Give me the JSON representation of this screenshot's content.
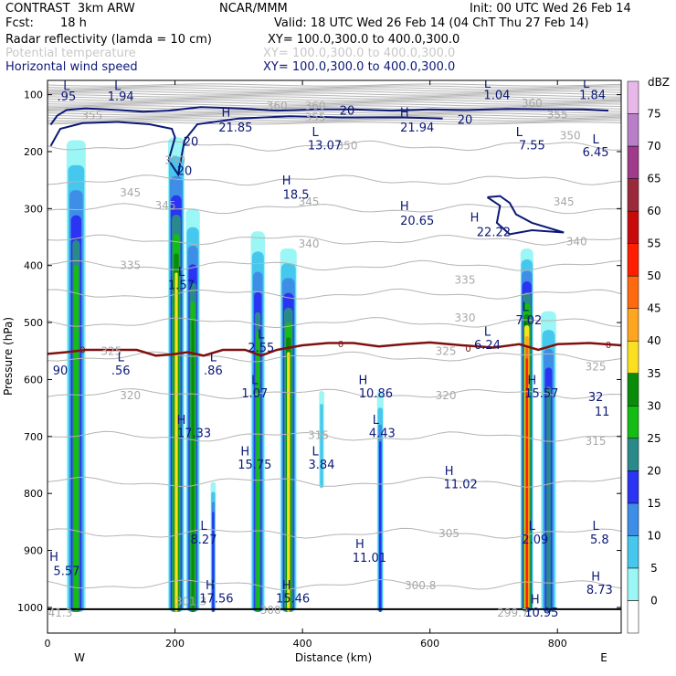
{
  "header": {
    "model": "CONTRAST  3km ARW",
    "producer": "NCAR/MMM",
    "init": "Init: 00 UTC Wed 26 Feb 14",
    "fcst_label": "Fcst:",
    "fcst_value": "18 h",
    "valid": "Valid: 18 UTC Wed 26 Feb 14 (04 ChT Thu 27 Feb 14)",
    "line1_name": "Radar reflectivity (lamda = 10 cm)",
    "line1_xy": "XY= 100.0,300.0 to 400.0,300.0",
    "line2_name": "Potential temperature",
    "line2_xy": "XY= 100.0,300.0 to 400.0,300.0",
    "line3_name": "Horizontal wind speed",
    "line3_xy": "XY= 100.0,300.0 to 400.0,300.0"
  },
  "colors": {
    "reflectivity_scale": [
      "#ffffff",
      "#9bf6f6",
      "#45c7ee",
      "#3e8ee8",
      "#2a34f2",
      "#2a8a8a",
      "#14bc14",
      "#0a8c0a",
      "#fae020",
      "#ffa520",
      "#ff6a10",
      "#ff1e00",
      "#c80a0a",
      "#9a2a3a",
      "#a03a8a",
      "#b87ec8",
      "#e8b8e8"
    ],
    "theta": "#b4b4b4",
    "wind": "#0c1878",
    "freezing": "#801010"
  },
  "chart_data": {
    "type": "cross-section",
    "title": "Radar reflectivity, potential temperature, horizontal wind speed",
    "xlabel": "Distance (km)",
    "ylabel": "Pressure (hPa)",
    "xlim": [
      0,
      900
    ],
    "ylim": [
      1045,
      75
    ],
    "x_ticks": [
      0,
      200,
      400,
      600,
      800
    ],
    "y_ticks": [
      100,
      200,
      300,
      400,
      500,
      600,
      700,
      800,
      900,
      1000
    ],
    "x_end_labels": [
      "W",
      "E"
    ],
    "colorbar": {
      "unit": "dBZ",
      "levels": [
        "0",
        "5",
        "10",
        "15",
        "20",
        "25",
        "30",
        "35",
        "40",
        "45",
        "50",
        "55",
        "60",
        "65",
        "70",
        "75"
      ]
    },
    "theta_labels": [
      {
        "x": 70,
        "p": 137,
        "t": "355"
      },
      {
        "x": 360,
        "p": 120,
        "t": "360"
      },
      {
        "x": 420,
        "p": 120,
        "t": "360"
      },
      {
        "x": 760,
        "p": 115,
        "t": "360"
      },
      {
        "x": 800,
        "p": 135,
        "t": "355"
      },
      {
        "x": 420,
        "p": 140,
        "t": "355"
      },
      {
        "x": 200,
        "p": 215,
        "t": "350"
      },
      {
        "x": 470,
        "p": 190,
        "t": "350"
      },
      {
        "x": 820,
        "p": 172,
        "t": "350"
      },
      {
        "x": 130,
        "p": 272,
        "t": "345"
      },
      {
        "x": 185,
        "p": 295,
        "t": "345"
      },
      {
        "x": 410,
        "p": 288,
        "t": "345"
      },
      {
        "x": 810,
        "p": 288,
        "t": "345"
      },
      {
        "x": 410,
        "p": 362,
        "t": "340"
      },
      {
        "x": 830,
        "p": 358,
        "t": "340"
      },
      {
        "x": 130,
        "p": 400,
        "t": "335"
      },
      {
        "x": 655,
        "p": 425,
        "t": "335"
      },
      {
        "x": 655,
        "p": 492,
        "t": "330"
      },
      {
        "x": 100,
        "p": 550,
        "t": "325"
      },
      {
        "x": 625,
        "p": 550,
        "t": "325"
      },
      {
        "x": 860,
        "p": 578,
        "t": "325"
      },
      {
        "x": 130,
        "p": 628,
        "t": "320"
      },
      {
        "x": 625,
        "p": 628,
        "t": "320"
      },
      {
        "x": 425,
        "p": 698,
        "t": "315"
      },
      {
        "x": 860,
        "p": 708,
        "t": "315"
      },
      {
        "x": 630,
        "p": 870,
        "t": "305"
      },
      {
        "x": 585,
        "p": 962,
        "t": "300.8"
      },
      {
        "x": 225,
        "p": 990,
        "t": "301.3"
      },
      {
        "x": 350,
        "p": 1005,
        "t": "300"
      },
      {
        "x": 730,
        "p": 1010,
        "t": "299.7"
      },
      {
        "x": 20,
        "p": 1010,
        "t": "41.3"
      }
    ],
    "wind_labels": [
      {
        "x": 30,
        "p": 84,
        "t": "L"
      },
      {
        "x": 30,
        "p": 102,
        "t": ".95"
      },
      {
        "x": 110,
        "p": 84,
        "t": "L"
      },
      {
        "x": 115,
        "p": 102,
        "t": "1.94"
      },
      {
        "x": 280,
        "p": 130,
        "t": "H"
      },
      {
        "x": 295,
        "p": 157,
        "t": "21.85"
      },
      {
        "x": 560,
        "p": 130,
        "t": "H"
      },
      {
        "x": 580,
        "p": 157,
        "t": "21.94"
      },
      {
        "x": 420,
        "p": 165,
        "t": "L"
      },
      {
        "x": 435,
        "p": 188,
        "t": "13.07"
      },
      {
        "x": 690,
        "p": 80,
        "t": "L"
      },
      {
        "x": 705,
        "p": 100,
        "t": "1.04"
      },
      {
        "x": 845,
        "p": 80,
        "t": "L"
      },
      {
        "x": 855,
        "p": 100,
        "t": "1.84"
      },
      {
        "x": 740,
        "p": 165,
        "t": "L"
      },
      {
        "x": 760,
        "p": 188,
        "t": "7.55"
      },
      {
        "x": 860,
        "p": 178,
        "t": "L"
      },
      {
        "x": 860,
        "p": 200,
        "t": "6.45"
      },
      {
        "x": 375,
        "p": 250,
        "t": "H"
      },
      {
        "x": 390,
        "p": 275,
        "t": "18.5"
      },
      {
        "x": 560,
        "p": 295,
        "t": "H"
      },
      {
        "x": 580,
        "p": 320,
        "t": "20.65"
      },
      {
        "x": 670,
        "p": 315,
        "t": "H"
      },
      {
        "x": 700,
        "p": 340,
        "t": "22.22"
      },
      {
        "x": 210,
        "p": 410,
        "t": "L"
      },
      {
        "x": 210,
        "p": 433,
        "t": "1.57"
      },
      {
        "x": 335,
        "p": 520,
        "t": "L"
      },
      {
        "x": 335,
        "p": 543,
        "t": "2.55"
      },
      {
        "x": 750,
        "p": 472,
        "t": "L"
      },
      {
        "x": 755,
        "p": 495,
        "t": "7.02"
      },
      {
        "x": 690,
        "p": 515,
        "t": "L"
      },
      {
        "x": 690,
        "p": 538,
        "t": "6.24"
      },
      {
        "x": 115,
        "p": 560,
        "t": "L"
      },
      {
        "x": 115,
        "p": 583,
        "t": ".56"
      },
      {
        "x": 260,
        "p": 560,
        "t": "L"
      },
      {
        "x": 260,
        "p": 583,
        "t": ".86"
      },
      {
        "x": 20,
        "p": 583,
        "t": "90"
      },
      {
        "x": 325,
        "p": 600,
        "t": "L"
      },
      {
        "x": 325,
        "p": 623,
        "t": "1.07"
      },
      {
        "x": 495,
        "p": 600,
        "t": "H"
      },
      {
        "x": 515,
        "p": 623,
        "t": "10.86"
      },
      {
        "x": 760,
        "p": 600,
        "t": "H"
      },
      {
        "x": 775,
        "p": 623,
        "t": "15.57"
      },
      {
        "x": 860,
        "p": 630,
        "t": "32"
      },
      {
        "x": 870,
        "p": 655,
        "t": "11"
      },
      {
        "x": 210,
        "p": 670,
        "t": "H"
      },
      {
        "x": 230,
        "p": 693,
        "t": "17.33"
      },
      {
        "x": 515,
        "p": 670,
        "t": "L"
      },
      {
        "x": 525,
        "p": 693,
        "t": "4.43"
      },
      {
        "x": 310,
        "p": 725,
        "t": "H"
      },
      {
        "x": 325,
        "p": 748,
        "t": "15.75"
      },
      {
        "x": 420,
        "p": 725,
        "t": "L"
      },
      {
        "x": 430,
        "p": 748,
        "t": "3.84"
      },
      {
        "x": 630,
        "p": 760,
        "t": "H"
      },
      {
        "x": 648,
        "p": 783,
        "t": "11.02"
      },
      {
        "x": 245,
        "p": 856,
        "t": "L"
      },
      {
        "x": 245,
        "p": 880,
        "t": "8.27"
      },
      {
        "x": 760,
        "p": 856,
        "t": "L"
      },
      {
        "x": 765,
        "p": 880,
        "t": "2.09"
      },
      {
        "x": 860,
        "p": 856,
        "t": "L"
      },
      {
        "x": 866,
        "p": 880,
        "t": "5.8"
      },
      {
        "x": 490,
        "p": 888,
        "t": "H"
      },
      {
        "x": 505,
        "p": 912,
        "t": "11.01"
      },
      {
        "x": 10,
        "p": 910,
        "t": "H"
      },
      {
        "x": 30,
        "p": 935,
        "t": "5.57"
      },
      {
        "x": 860,
        "p": 945,
        "t": "H"
      },
      {
        "x": 866,
        "p": 968,
        "t": "8.73"
      },
      {
        "x": 255,
        "p": 960,
        "t": "H"
      },
      {
        "x": 265,
        "p": 983,
        "t": "17.56"
      },
      {
        "x": 375,
        "p": 960,
        "t": "H"
      },
      {
        "x": 385,
        "p": 983,
        "t": "15.46"
      },
      {
        "x": 765,
        "p": 985,
        "t": "H"
      },
      {
        "x": 775,
        "p": 1008,
        "t": "10.95"
      },
      {
        "x": 225,
        "p": 182,
        "t": "20"
      },
      {
        "x": 215,
        "p": 233,
        "t": "20"
      },
      {
        "x": 470,
        "p": 127,
        "t": "20"
      },
      {
        "x": 655,
        "p": 143,
        "t": "20"
      }
    ],
    "freezing_level_labels": [
      {
        "x": 55,
        "p": 547,
        "t": "0"
      },
      {
        "x": 460,
        "p": 537,
        "t": "0"
      },
      {
        "x": 660,
        "p": 545,
        "t": "0"
      },
      {
        "x": 880,
        "p": 538,
        "t": "0"
      }
    ],
    "wind_contour_20": [
      [
        [
          5,
          153
        ],
        [
          15,
          137
        ],
        [
          30,
          127
        ],
        [
          60,
          124
        ],
        [
          110,
          127
        ],
        [
          150,
          130
        ],
        [
          190,
          128
        ],
        [
          240,
          122
        ],
        [
          300,
          124
        ],
        [
          360,
          128
        ],
        [
          420,
          126
        ],
        [
          480,
          126
        ],
        [
          540,
          128
        ],
        [
          600,
          126
        ],
        [
          660,
          127
        ],
        [
          720,
          125
        ],
        [
          780,
          126
        ],
        [
          840,
          126
        ],
        [
          880,
          128
        ]
      ],
      [
        [
          5,
          190
        ],
        [
          20,
          160
        ],
        [
          55,
          150
        ],
        [
          110,
          148
        ],
        [
          160,
          152
        ],
        [
          195,
          160
        ],
        [
          200,
          175
        ],
        [
          190,
          215
        ],
        [
          205,
          240
        ],
        [
          215,
          180
        ],
        [
          235,
          152
        ],
        [
          300,
          142
        ],
        [
          380,
          138
        ],
        [
          460,
          140
        ],
        [
          520,
          140
        ],
        [
          560,
          140
        ],
        [
          620,
          142
        ]
      ],
      [
        [
          690,
          280
        ],
        [
          710,
          295
        ],
        [
          705,
          325
        ],
        [
          725,
          345
        ],
        [
          760,
          338
        ],
        [
          810,
          342
        ],
        [
          760,
          325
        ],
        [
          735,
          310
        ],
        [
          725,
          290
        ],
        [
          710,
          278
        ],
        [
          690,
          280
        ]
      ]
    ],
    "freezing_level": [
      [
        0,
        555
      ],
      [
        30,
        552
      ],
      [
        60,
        548
      ],
      [
        100,
        548
      ],
      [
        140,
        548
      ],
      [
        170,
        558
      ],
      [
        195,
        556
      ],
      [
        220,
        552
      ],
      [
        245,
        558
      ],
      [
        275,
        548
      ],
      [
        310,
        548
      ],
      [
        335,
        558
      ],
      [
        360,
        548
      ],
      [
        400,
        540
      ],
      [
        440,
        536
      ],
      [
        480,
        536
      ],
      [
        520,
        542
      ],
      [
        560,
        538
      ],
      [
        600,
        535
      ],
      [
        650,
        540
      ],
      [
        700,
        544
      ],
      [
        740,
        538
      ],
      [
        770,
        548
      ],
      [
        800,
        538
      ],
      [
        850,
        536
      ],
      [
        900,
        540
      ]
    ],
    "reflectivity_cells": [
      {
        "x": 45,
        "w": 30,
        "top": 180,
        "bottom": 1008,
        "peak": 30
      },
      {
        "x": 202,
        "w": 26,
        "top": 175,
        "bottom": 1008,
        "peak": 40
      },
      {
        "x": 228,
        "w": 22,
        "top": 300,
        "bottom": 1008,
        "peak": 35
      },
      {
        "x": 260,
        "w": 8,
        "top": 780,
        "bottom": 1008,
        "peak": 20
      },
      {
        "x": 330,
        "w": 22,
        "top": 340,
        "bottom": 1008,
        "peak": 30
      },
      {
        "x": 378,
        "w": 26,
        "top": 370,
        "bottom": 1008,
        "peak": 40
      },
      {
        "x": 430,
        "w": 8,
        "top": 620,
        "bottom": 790,
        "peak": 10
      },
      {
        "x": 522,
        "w": 10,
        "top": 620,
        "bottom": 1008,
        "peak": 20
      },
      {
        "x": 752,
        "w": 20,
        "top": 370,
        "bottom": 1008,
        "peak": 55
      },
      {
        "x": 786,
        "w": 24,
        "top": 480,
        "bottom": 1008,
        "peak": 25
      }
    ],
    "ground_pressure": 1000
  }
}
